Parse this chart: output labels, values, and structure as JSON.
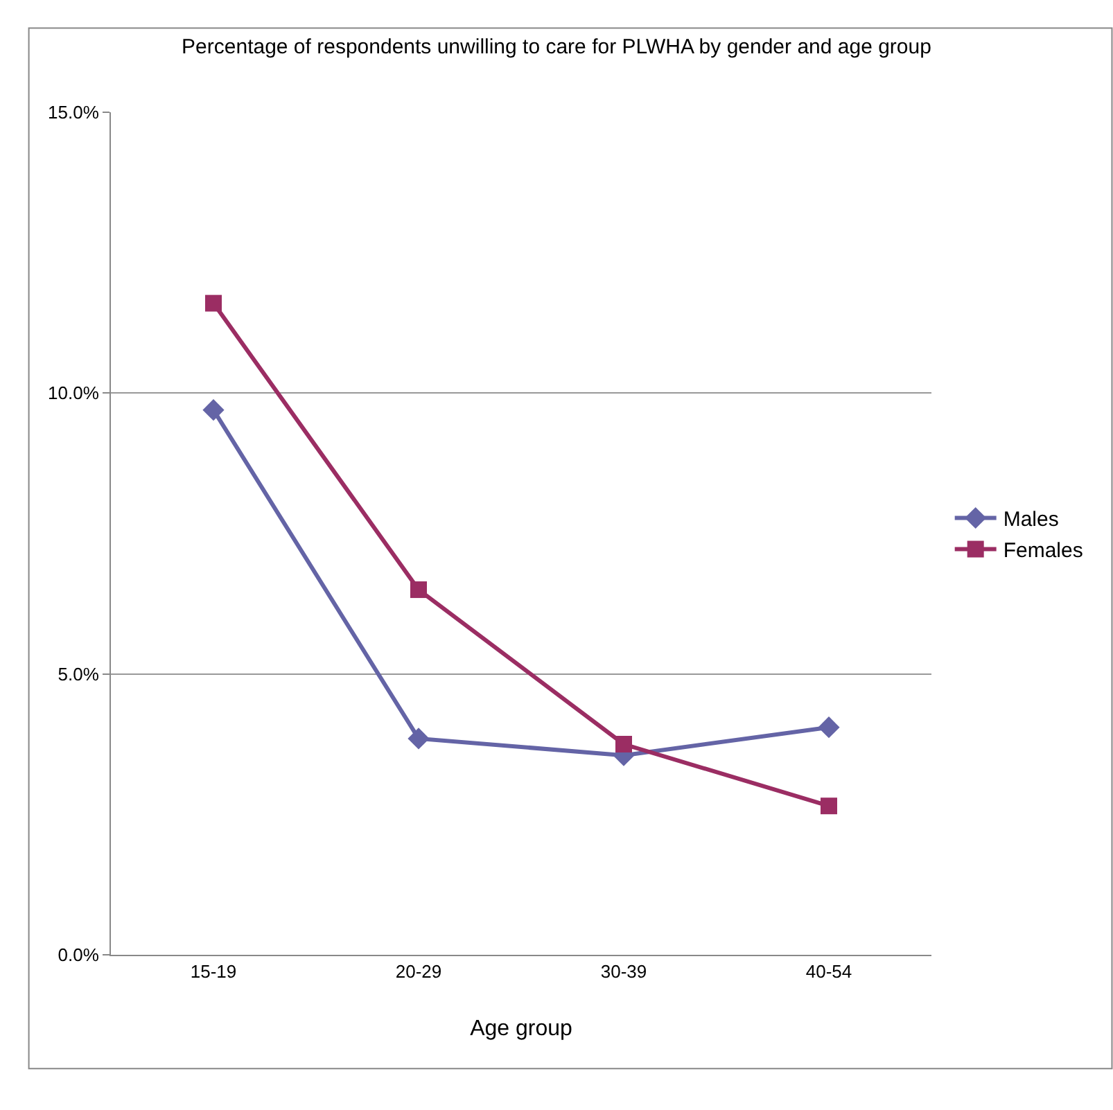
{
  "chart_data": {
    "type": "line",
    "title": "Percentage of respondents unwilling to care for PLWHA by gender and age group",
    "xlabel": "Age group",
    "categories": [
      "15-19",
      "20-29",
      "30-39",
      "40-54"
    ],
    "series": [
      {
        "name": "Males",
        "color": "#6464a6",
        "marker": "diamond",
        "values": [
          9.7,
          3.85,
          3.55,
          4.05
        ]
      },
      {
        "name": "Females",
        "color": "#9b2d63",
        "marker": "square",
        "values": [
          11.6,
          6.5,
          3.75,
          2.65
        ]
      }
    ],
    "ylim": [
      0,
      15
    ],
    "yticks": [
      {
        "value": 0,
        "label": "0.0%"
      },
      {
        "value": 5,
        "label": "5.0%"
      },
      {
        "value": 10,
        "label": "10.0%"
      },
      {
        "value": 15,
        "label": "15.0%"
      }
    ],
    "grid": "y",
    "legend": "right",
    "line_style": "solid"
  }
}
